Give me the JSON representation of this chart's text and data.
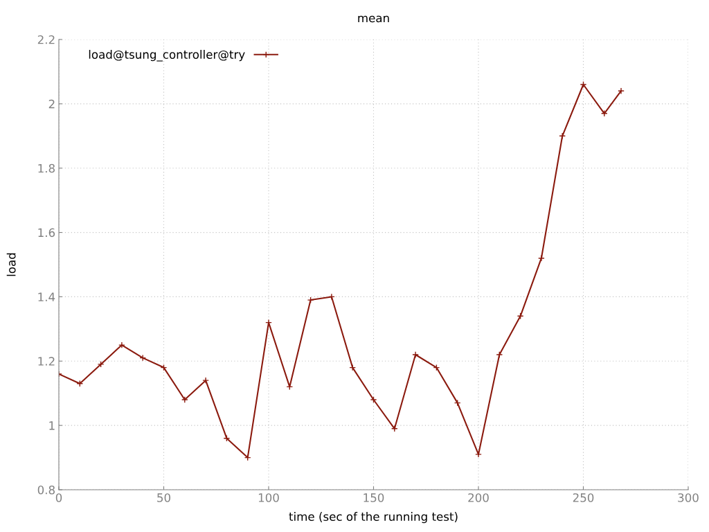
{
  "chart_data": {
    "type": "line",
    "title": "mean",
    "xlabel": "time (sec of the running test)",
    "ylabel": "load",
    "x": [
      0,
      10,
      20,
      30,
      40,
      50,
      60,
      70,
      80,
      90,
      100,
      110,
      120,
      130,
      140,
      150,
      160,
      170,
      180,
      190,
      200,
      210,
      220,
      230,
      240,
      250,
      260,
      268
    ],
    "series": [
      {
        "name": "load@tsung_controller@try",
        "color": "#8b1a0e",
        "values": [
          1.16,
          1.13,
          1.19,
          1.25,
          1.21,
          1.18,
          1.08,
          1.14,
          0.96,
          0.9,
          1.32,
          1.12,
          1.39,
          1.4,
          1.18,
          1.08,
          0.99,
          1.22,
          1.18,
          1.07,
          0.91,
          1.22,
          1.34,
          1.52,
          1.9,
          2.06,
          1.97,
          2.04
        ]
      }
    ],
    "xlim": [
      0,
      300
    ],
    "xticks": [
      0,
      50,
      100,
      150,
      200,
      250,
      300
    ],
    "ylim": [
      0.8,
      2.2
    ],
    "yticks": [
      0.8,
      1,
      1.2,
      1.4,
      1.6,
      1.8,
      2,
      2.2
    ],
    "grid": true,
    "legend": "top left",
    "marker": "cross",
    "line_style": "solid"
  }
}
